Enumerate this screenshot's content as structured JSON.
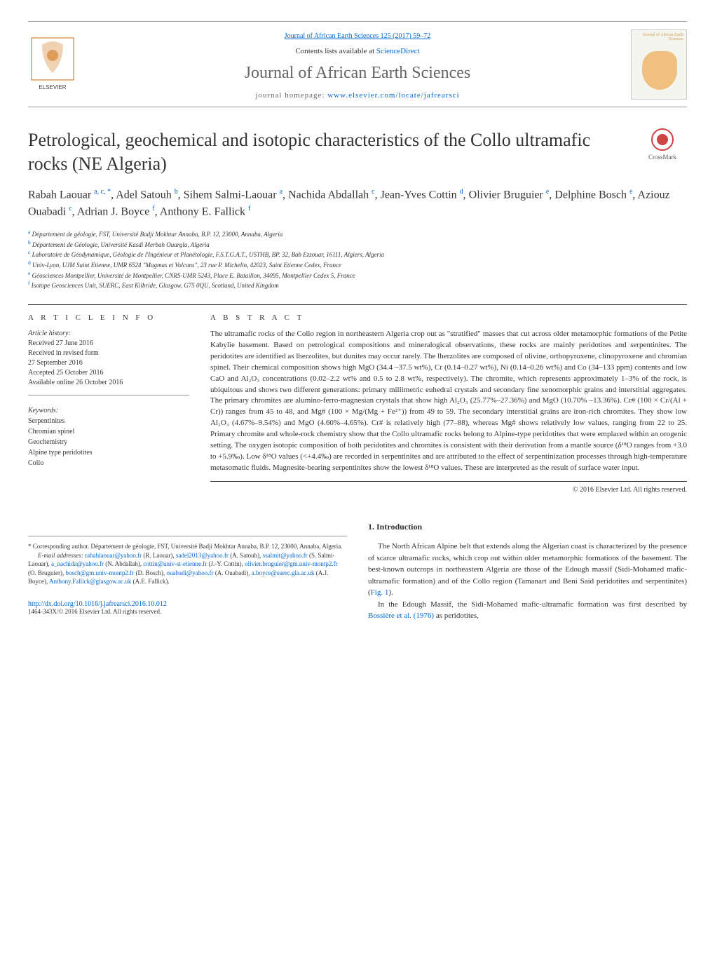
{
  "journal_ref": "Journal of African Earth Sciences 125 (2017) 59–72",
  "contents_text": "Contents lists available at ",
  "sciencedirect": "ScienceDirect",
  "journal_title": "Journal of African Earth Sciences",
  "homepage_label": "journal homepage: ",
  "homepage_url": "www.elsevier.com/locate/jafrearsci",
  "cover_journal_label": "Journal of African Earth Sciences",
  "elsevier_label": "ELSEVIER",
  "article_title": "Petrological, geochemical and isotopic characteristics of the Collo ultramafic rocks (NE Algeria)",
  "crossmark_label": "CrossMark",
  "authors_html": "Rabah Laouar <sup>a, c, *</sup>, Adel Satouh <sup>b</sup>, Sihem Salmi-Laouar <sup>a</sup>, Nachida Abdallah <sup>c</sup>, Jean-Yves Cottin <sup>d</sup>, Olivier Bruguier <sup>e</sup>, Delphine Bosch <sup>e</sup>, Aziouz Ouabadi <sup>c</sup>, Adrian J. Boyce <sup>f</sup>, Anthony E. Fallick <sup>f</sup>",
  "affiliations": [
    {
      "sup": "a",
      "text": " Département de géologie, FST, Université Badji Mokhtar Annaba, B.P. 12, 23000, Annaba, Algeria"
    },
    {
      "sup": "b",
      "text": " Département de Géologie, Université Kasdi Merbah Ouargla, Algeria"
    },
    {
      "sup": "c",
      "text": " Laboratoire de Géodynamique, Géologie de l'Ingénieur et Planétologie, F.S.T.G.A.T., USTHB, BP. 32, Bab Ezzouar, 16111, Algiers, Algeria"
    },
    {
      "sup": "d",
      "text": " Univ-Lyon, UJM Saint Etienne, UMR 6524 \"Magmas et Volcans\", 23 rue P. Michelin, 42023, Saint Etienne Cedex, France"
    },
    {
      "sup": "e",
      "text": " Géosciences Montpellier, Université de Montpellier, CNRS-UMR 5243, Place E. Bataillon, 34095, Montpellier Cedex 5, France"
    },
    {
      "sup": "f",
      "text": " Isotope Geosciences Unit, SUERC, East Kilbride, Glasgow, G75 0QU, Scotland, United Kingdom"
    }
  ],
  "article_info_heading": "A R T I C L E   I N F O",
  "history_label": "Article history:",
  "history_items": [
    "Received 27 June 2016",
    "Received in revised form",
    "27 September 2016",
    "Accepted 25 October 2016",
    "Available online 26 October 2016"
  ],
  "keywords_label": "Keywords:",
  "keywords": [
    "Serpentinites",
    "Chromian spinel",
    "Geochemistry",
    "Alpine type peridotites",
    "Collo"
  ],
  "abstract_heading": "A B S T R A C T",
  "abstract_text": "The ultramafic rocks of the Collo region in northeastern Algeria crop out as \"stratified\" masses that cut across older metamorphic formations of the Petite Kabylie basement. Based on petrological compositions and mineralogical observations, these rocks are mainly peridotites and serpentinites. The peridotites are identified as lherzolites, but dunites may occur rarely. The lherzolites are composed of olivine, orthopyroxene, clinopyroxene and chromian spinel. Their chemical composition shows high MgO (34.4 –37.5 wt%), Cr (0.14–0.27 wt%), Ni (0.14–0.26 wt%) and Co (34–133 ppm) contents and low CaO and Al₂O₃ concentrations (0.02–2.2 wt% and 0.5 to 2.8 wt%, respectively). The chromite, which represents approximately 1–3% of the rock, is ubiquitous and shows two different generations: primary millimetric euhedral crystals and secondary fine xenomorphic grains and interstitial aggregates. The primary chromites are alumino-ferro-magnesian crystals that show high Al₂O₃ (25.77%–27.36%) and MgO (10.70% –13.36%). Cr# (100 × Cr/(Al + Cr)) ranges from 45 to 48, and Mg# (100 × Mg/(Mg + Fe²⁺)) from 49 to 59. The secondary interstitial grains are iron-rich chromites. They show low Al₂O₃ (4.67%–9.54%) and MgO (4.60%–4.65%). Cr# is relatively high (77–88), whereas Mg# shows relatively low values, ranging from 22 to 25. Primary chromite and whole-rock chemistry show that the Collo ultramafic rocks belong to Alpine-type peridotites that were emplaced within an orogenic setting. The oxygen isotopic composition of both peridotites and chromites is consistent with their derivation from a mantle source (δ¹⁸O ranges from +3.0 to +5.9‰). Low δ¹⁸O values (<+4.4‰) are recorded in serpentinites and are attributed to the effect of serpentinization processes through high-temperature metasomatic fluids. Magnesite-bearing serpentinites show the lowest δ¹⁸O values. These are interpreted as the result of surface water input.",
  "copyright_text": "© 2016 Elsevier Ltd. All rights reserved.",
  "section1_heading": "1. Introduction",
  "intro_p1": "The North African Alpine belt that extends along the Algerian coast is characterized by the presence of scarce ultramafic rocks, which crop out within older metamorphic formations of the basement. The best-known outcrops in northeastern Algeria are those of the Edough massif (Sidi-Mohamed mafic-ultramafic formation) and of the Collo region (Tamanart and Beni Said peridotites and serpentinites) (",
  "intro_p1_link": "Fig. 1",
  "intro_p1_end": ").",
  "intro_p2_start": "In the Edough Massif, the Sidi-Mohamed mafic-ultramafic formation was first described by ",
  "intro_p2_link": "Bossière et al. (1976)",
  "intro_p2_end": " as peridotites,",
  "footnote_star": "* Corresponding author. Département de géologie, FST, Université Badji Mokhtar Annaba, B.P. 12, 23000, Annaba, Algeria.",
  "footnote_email_label": "E-mail addresses: ",
  "emails": [
    {
      "email": "rabahlaouar@yahoo.fr",
      "name": "(R. Laouar)"
    },
    {
      "email": "sadel2013@yahoo.fr",
      "name": "(A. Satouh)"
    },
    {
      "email": "ssalmit@yahoo.fr",
      "name": "(S. Salmi-Laouar)"
    },
    {
      "email": "a_nachida@yahoo.fr",
      "name": "(N. Abdallah)"
    },
    {
      "email": "cottin@univ-st-etienne.fr",
      "name": "(J.-Y. Cottin)"
    },
    {
      "email": "olivier.bruguier@gm.univ-montp2.fr",
      "name": "(O. Bruguier)"
    },
    {
      "email": "bosch@gm.univ-montp2.fr",
      "name": "(D. Bosch)"
    },
    {
      "email": "ouabadi@yahoo.fr",
      "name": "(A. Ouabadi)"
    },
    {
      "email": "a.boyce@suerc.gla.ac.uk",
      "name": "(A.J. Boyce)"
    },
    {
      "email": "Anthony.Fallick@glasgow.ac.uk",
      "name": "(A.E. Fallick)"
    }
  ],
  "doi_url": "http://dx.doi.org/10.1016/j.jafrearsci.2016.10.012",
  "issn_copy": "1464-343X/© 2016 Elsevier Ltd. All rights reserved.",
  "colors": {
    "link": "#0066cc",
    "text": "#333333",
    "gray": "#666666",
    "border": "#999999"
  }
}
